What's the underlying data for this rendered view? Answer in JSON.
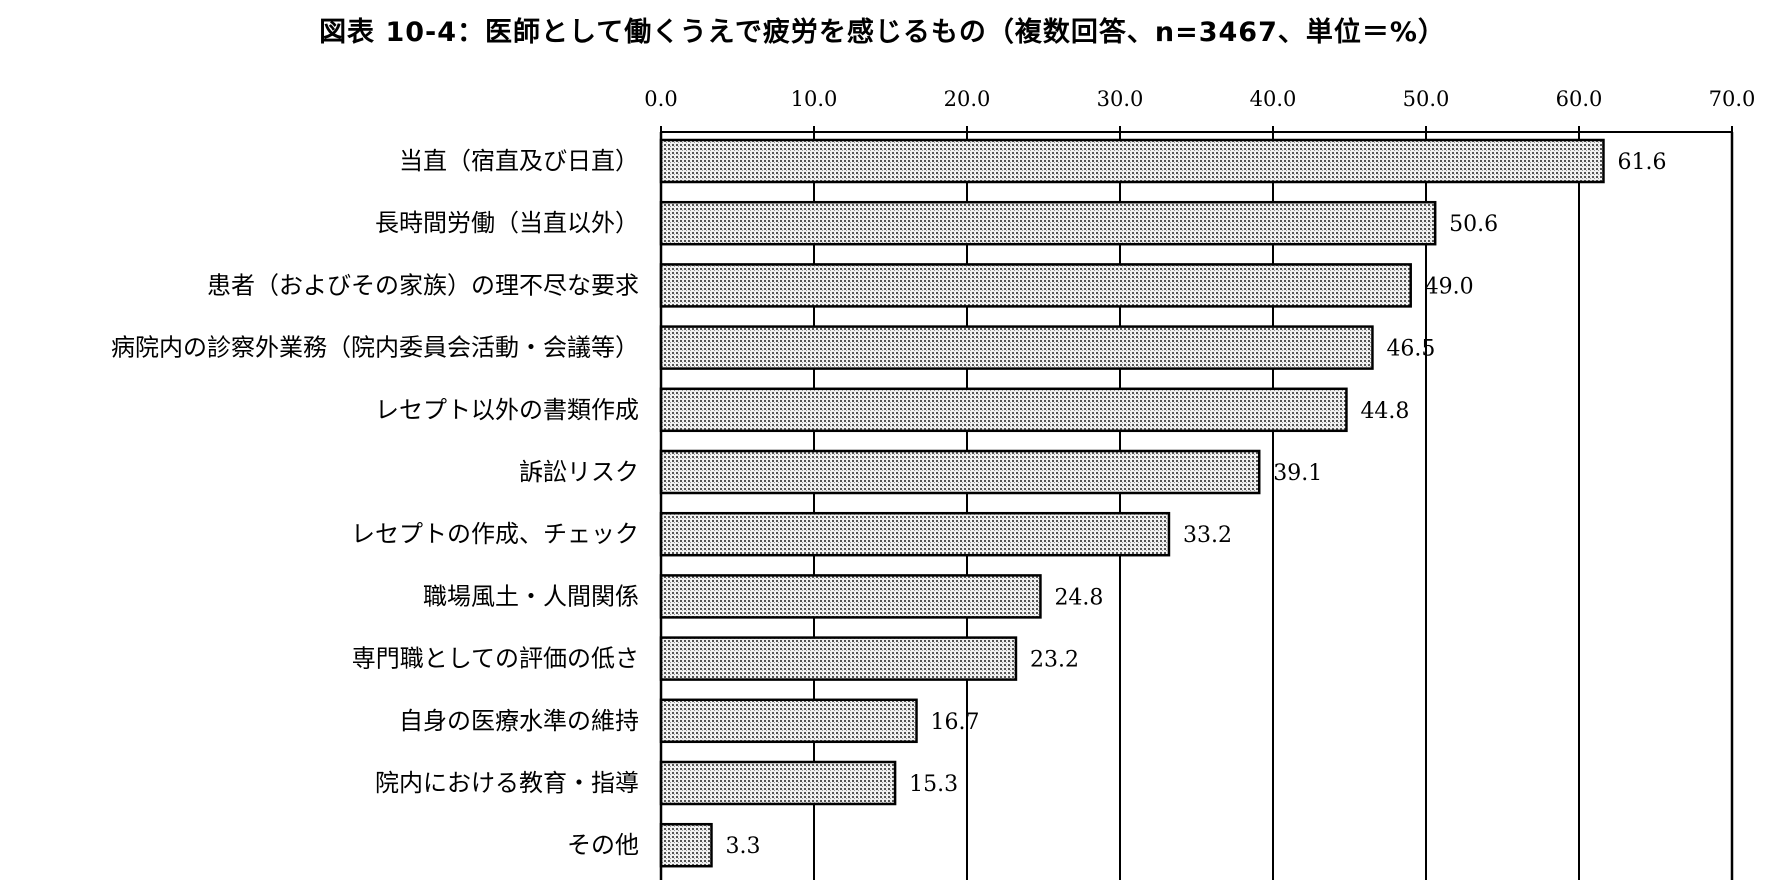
{
  "chart_data": {
    "type": "bar",
    "orientation": "horizontal",
    "title": "図表 10-4：医師として働くうえで疲労を感じるもの（複数回答、n=3467、単位＝%）",
    "categories": [
      "当直（宿直及び日直）",
      "長時間労働（当直以外）",
      "患者（およびその家族）の理不尽な要求",
      "病院内の診察外業務（院内委員会活動・会議等）",
      "レセプト以外の書類作成",
      "訴訟リスク",
      "レセプトの作成、チェック",
      "職場風土・人間関係",
      "専門職としての評価の低さ",
      "自身の医療水準の維持",
      "院内における教育・指導",
      "その他"
    ],
    "values": [
      61.6,
      50.6,
      49.0,
      46.5,
      44.8,
      39.1,
      33.2,
      24.8,
      23.2,
      16.7,
      15.3,
      3.3
    ],
    "value_labels": [
      "61.6",
      "50.6",
      "49.0",
      "46.5",
      "44.8",
      "39.1",
      "33.2",
      "24.8",
      "23.2",
      "16.7",
      "15.3",
      "3.3"
    ],
    "xlim": [
      0,
      70
    ],
    "xticks": [
      0,
      10,
      20,
      30,
      40,
      50,
      60,
      70
    ],
    "xtick_labels": [
      "0.0",
      "10.0",
      "20.0",
      "30.0",
      "40.0",
      "50.0",
      "60.0",
      "70.0"
    ],
    "x_axis_position": "top",
    "grid": "vertical",
    "bar_fill": "dotted-gray",
    "legend": "none"
  }
}
